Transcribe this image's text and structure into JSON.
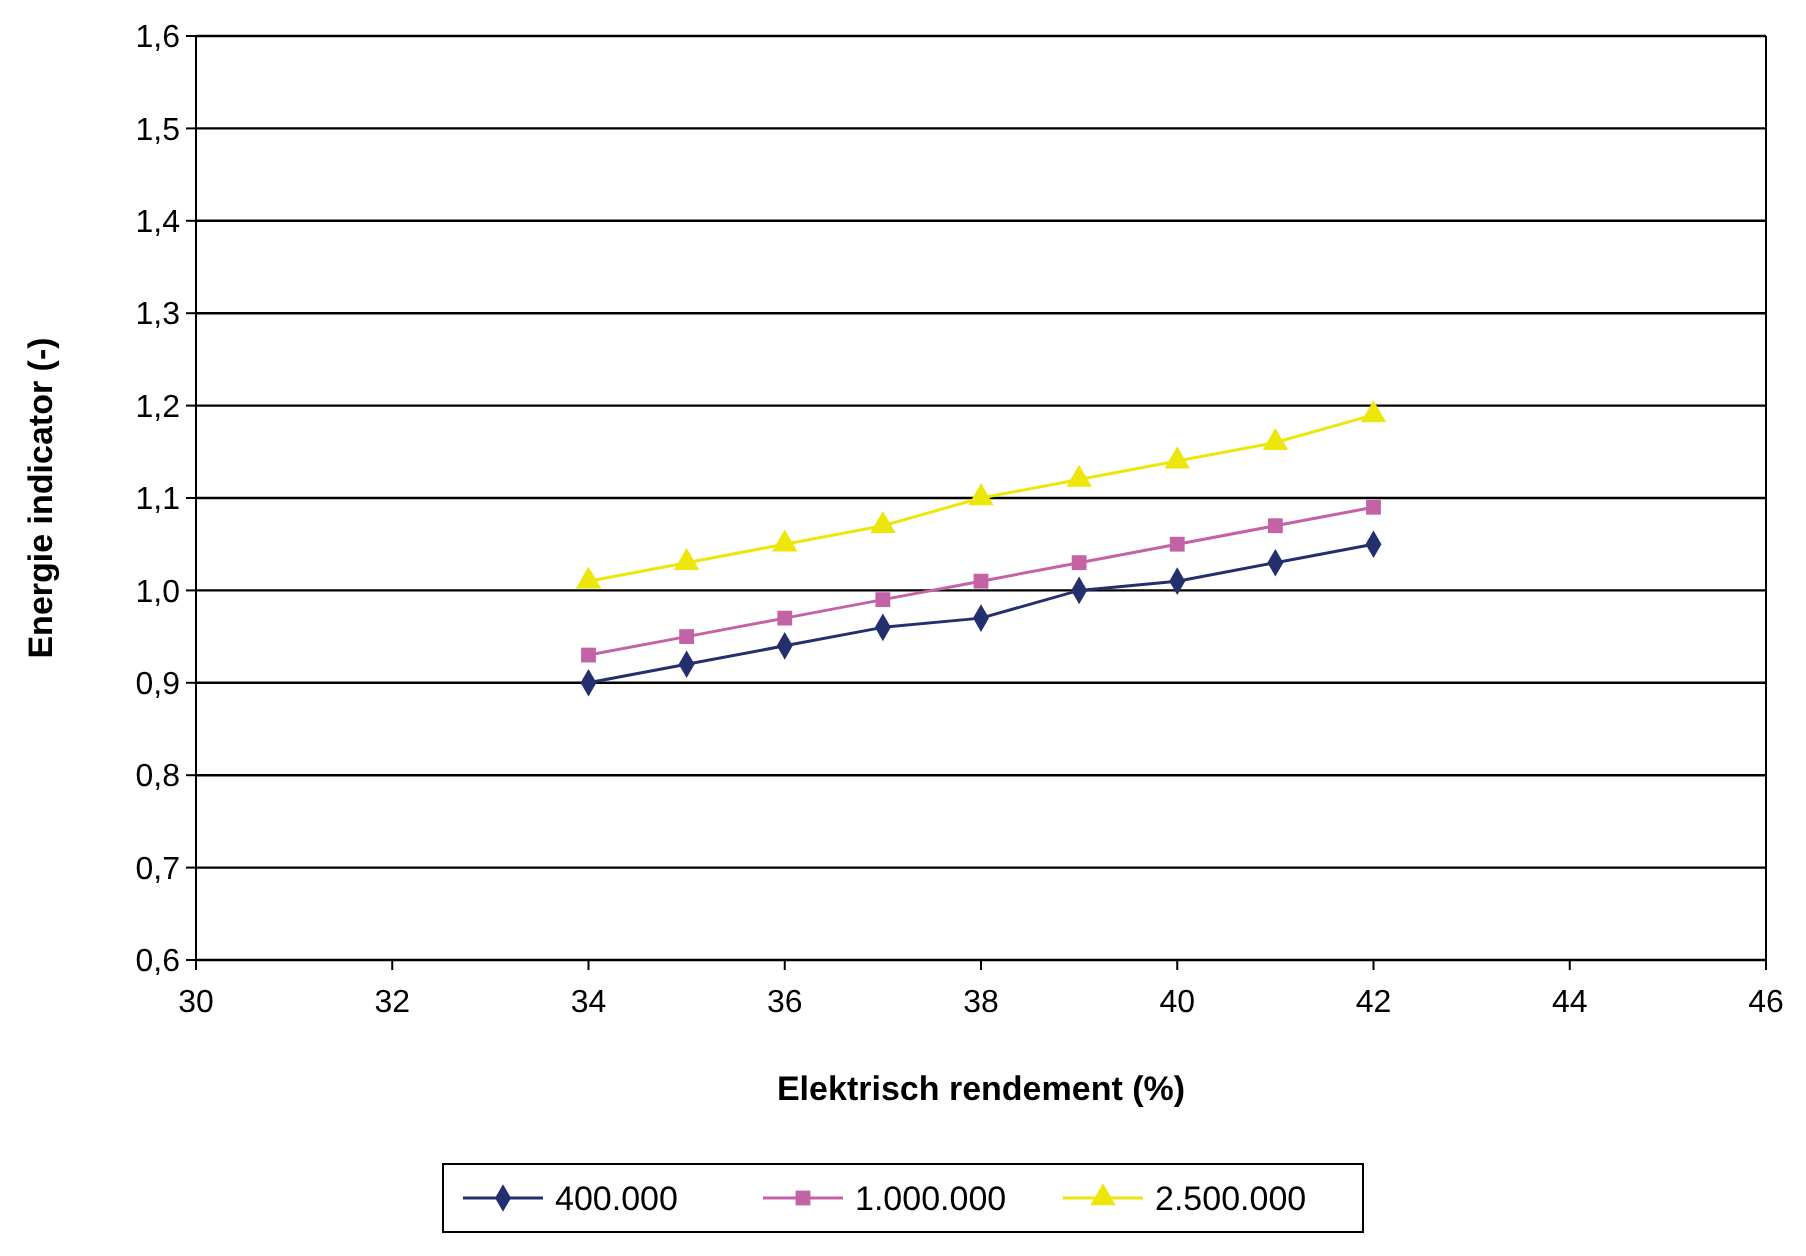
{
  "chart_data": {
    "type": "line",
    "xlabel": "Elektrisch rendement (%)",
    "ylabel": "Energie indicator (-)",
    "x": [
      34,
      35,
      36,
      37,
      38,
      39,
      40,
      41,
      42
    ],
    "series": [
      {
        "name": "400.000",
        "color": "#24306e",
        "marker": "diamond",
        "values": [
          0.9,
          0.92,
          0.94,
          0.96,
          0.97,
          1.0,
          1.01,
          1.03,
          1.05
        ]
      },
      {
        "name": "1.000.000",
        "color": "#c462a6",
        "marker": "square",
        "values": [
          0.93,
          0.95,
          0.97,
          0.99,
          1.01,
          1.03,
          1.05,
          1.07,
          1.09
        ]
      },
      {
        "name": "2.500.000",
        "color": "#ece60a",
        "marker": "triangle",
        "values": [
          1.01,
          1.03,
          1.05,
          1.07,
          1.1,
          1.12,
          1.14,
          1.16,
          1.19
        ]
      }
    ],
    "xlim": [
      30,
      46
    ],
    "xticks": [
      30,
      32,
      34,
      36,
      38,
      40,
      42,
      44,
      46
    ],
    "ylim": [
      0.6,
      1.6
    ],
    "yticks": [
      {
        "value": 0.6,
        "label": "0,6"
      },
      {
        "value": 0.7,
        "label": "0,7"
      },
      {
        "value": 0.8,
        "label": "0,8"
      },
      {
        "value": 0.9,
        "label": "0,9"
      },
      {
        "value": 1.0,
        "label": "1,0"
      },
      {
        "value": 1.1,
        "label": "1,1"
      },
      {
        "value": 1.2,
        "label": "1,2"
      },
      {
        "value": 1.3,
        "label": "1,3"
      },
      {
        "value": 1.4,
        "label": "1,4"
      },
      {
        "value": 1.5,
        "label": "1,5"
      },
      {
        "value": 1.6,
        "label": "1,6"
      }
    ],
    "grid": "y",
    "legend": "bottom",
    "line_style": "solid"
  }
}
